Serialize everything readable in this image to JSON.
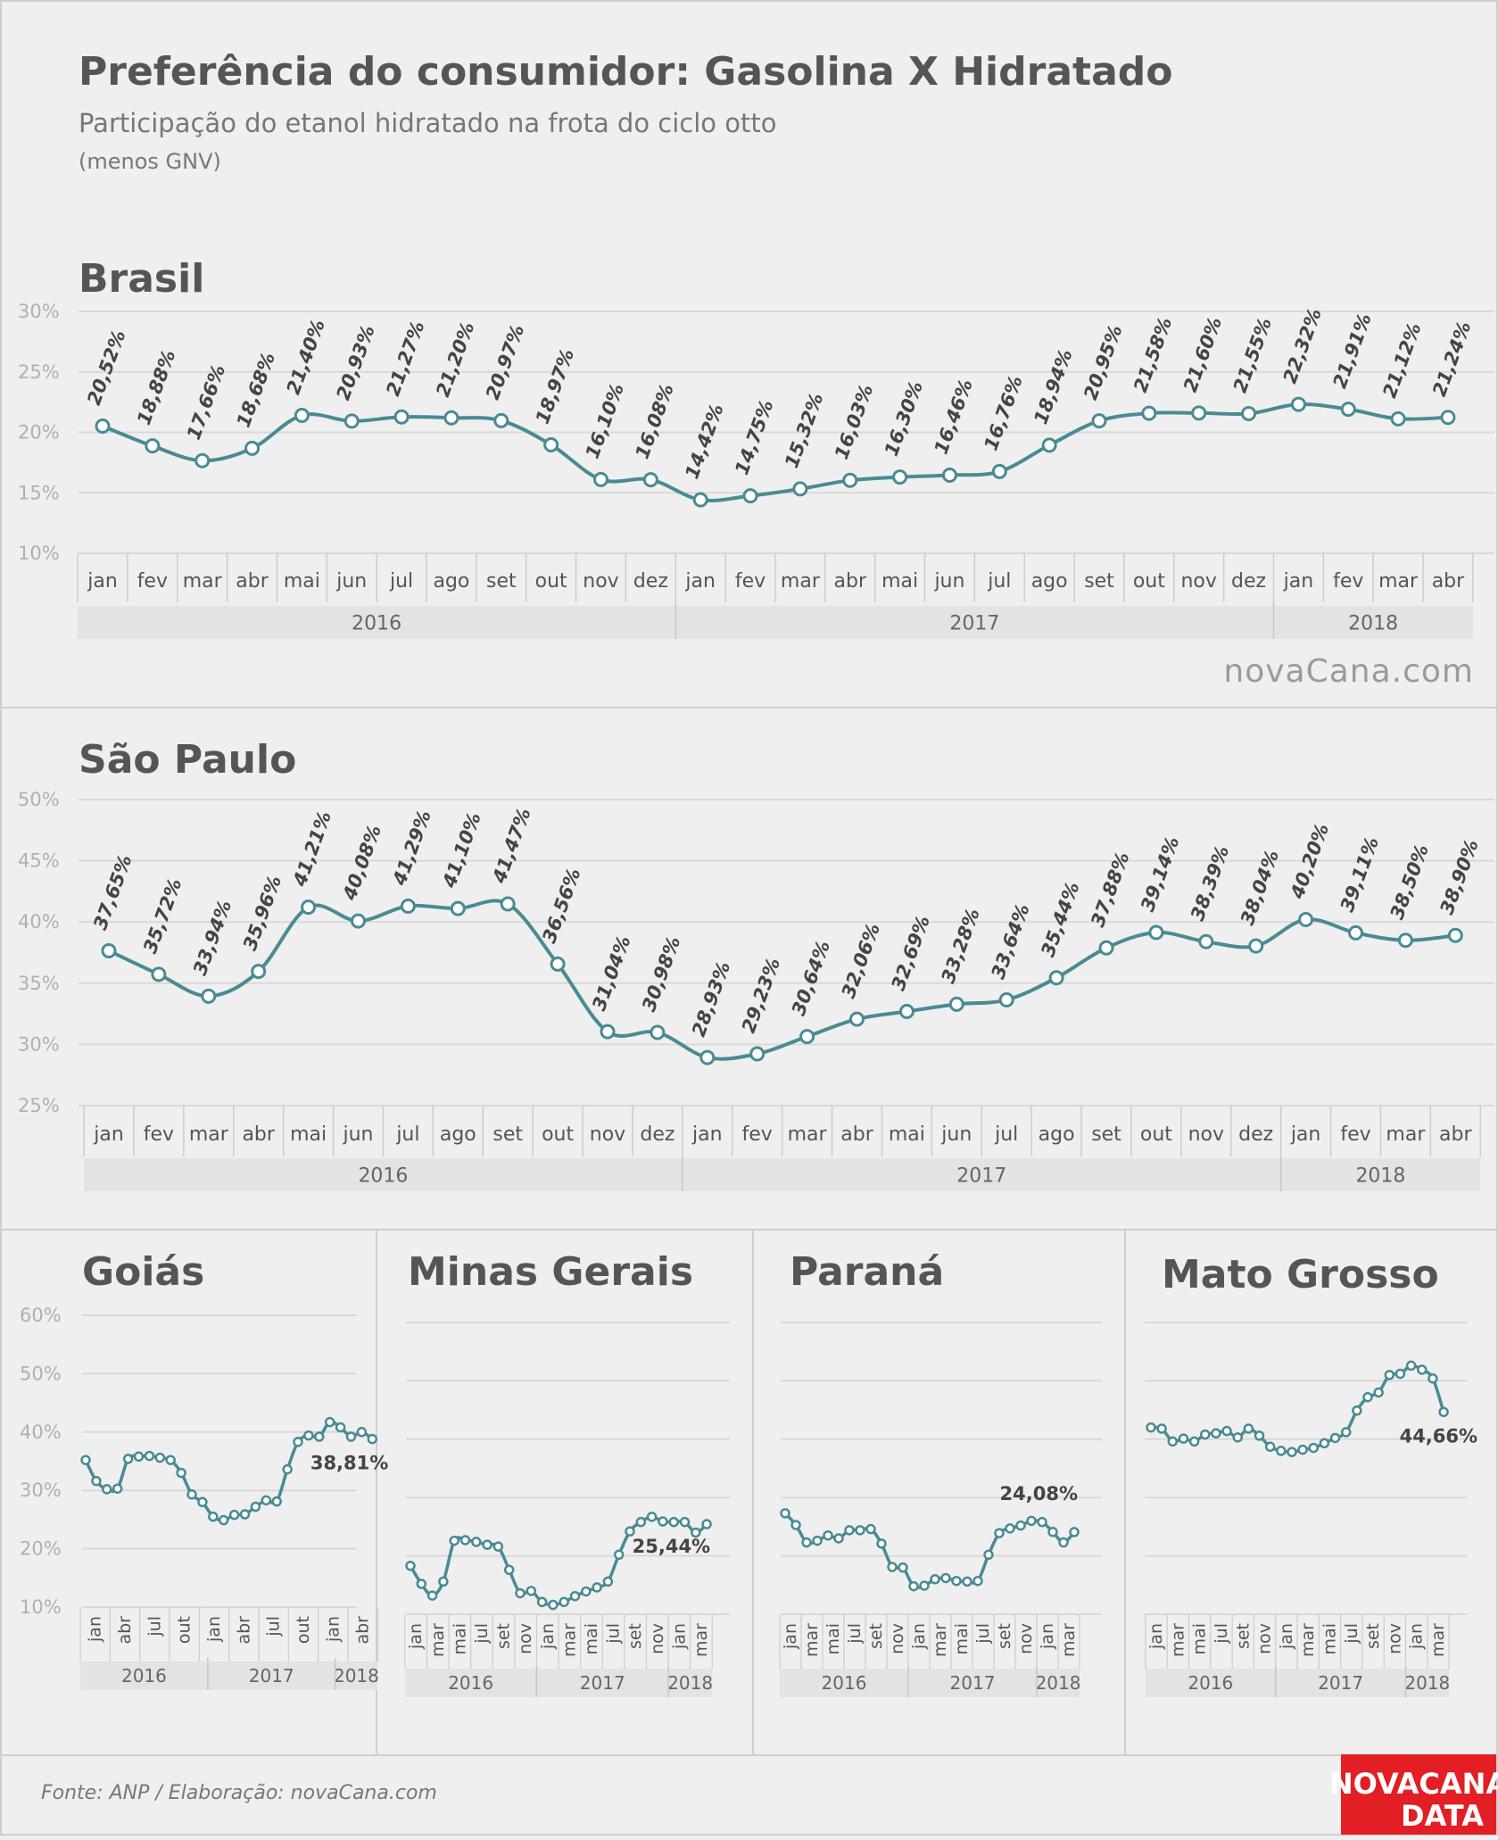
{
  "header": {
    "title": "Preferência do consumidor: Gasolina X Hidratado",
    "subtitle": "Participação do etanol hidratado na frota do ciclo otto",
    "note": "(menos GNV)"
  },
  "footer": {
    "source": "Fonte: ANP  / Elaboração: novaCana.com",
    "watermark": "novaCana.com",
    "logo_line1": "NOVACANA",
    "logo_line2": "DATA",
    "logo_color": "#e31e24"
  },
  "colors": {
    "line": "#4a8a93",
    "grid": "#d9d9d9",
    "band": "#e3e3e3"
  },
  "chart_data": [
    {
      "type": "line",
      "title": "Brasil",
      "x": [
        "jan",
        "fev",
        "mar",
        "abr",
        "mai",
        "jun",
        "jul",
        "ago",
        "set",
        "out",
        "nov",
        "dez",
        "jan",
        "fev",
        "mar",
        "abr",
        "mai",
        "jun",
        "jul",
        "ago",
        "set",
        "out",
        "nov",
        "dez",
        "jan",
        "fev",
        "mar",
        "abr"
      ],
      "year_groups": [
        {
          "label": "2016",
          "count": 12
        },
        {
          "label": "2017",
          "count": 12
        },
        {
          "label": "2018",
          "count": 4
        }
      ],
      "values": [
        20.52,
        18.88,
        17.66,
        18.68,
        21.4,
        20.93,
        21.27,
        21.2,
        20.97,
        18.97,
        16.1,
        16.08,
        14.42,
        14.75,
        15.32,
        16.03,
        16.3,
        16.46,
        16.76,
        18.94,
        20.95,
        21.58,
        21.6,
        21.55,
        22.32,
        21.91,
        21.12,
        21.24
      ],
      "labels": [
        "20,52%",
        "18,88%",
        "17,66%",
        "18,68%",
        "21,40%",
        "20,93%",
        "21,27%",
        "21,20%",
        "20,97%",
        "18,97%",
        "16,10%",
        "16,08%",
        "14,42%",
        "14,75%",
        "15,32%",
        "16,03%",
        "16,30%",
        "16,46%",
        "16,76%",
        "18,94%",
        "20,95%",
        "21,58%",
        "21,60%",
        "21,55%",
        "22,32%",
        "21,91%",
        "21,12%",
        "21,24%"
      ],
      "ylim": [
        10,
        30
      ],
      "yticks": [
        "10%",
        "15%",
        "20%",
        "25%",
        "30%"
      ],
      "grid": true
    },
    {
      "type": "line",
      "title": "São Paulo",
      "x": [
        "jan",
        "fev",
        "mar",
        "abr",
        "mai",
        "jun",
        "jul",
        "ago",
        "set",
        "out",
        "nov",
        "dez",
        "jan",
        "fev",
        "mar",
        "abr",
        "mai",
        "jun",
        "jul",
        "ago",
        "set",
        "out",
        "nov",
        "dez",
        "jan",
        "fev",
        "mar",
        "abr"
      ],
      "year_groups": [
        {
          "label": "2016",
          "count": 12
        },
        {
          "label": "2017",
          "count": 12
        },
        {
          "label": "2018",
          "count": 4
        }
      ],
      "values": [
        37.65,
        35.72,
        33.94,
        35.96,
        41.21,
        40.08,
        41.29,
        41.1,
        41.47,
        36.56,
        31.04,
        30.98,
        28.93,
        29.23,
        30.64,
        32.06,
        32.69,
        33.28,
        33.64,
        35.44,
        37.88,
        39.14,
        38.39,
        38.04,
        40.2,
        39.11,
        38.5,
        38.9
      ],
      "labels": [
        "37,65%",
        "35,72%",
        "33,94%",
        "35,96%",
        "41,21%",
        "40,08%",
        "41,29%",
        "41,10%",
        "41,47%",
        "36,56%",
        "31,04%",
        "30,98%",
        "28,93%",
        "29,23%",
        "30,64%",
        "32,06%",
        "32,69%",
        "33,28%",
        "33,64%",
        "35,44%",
        "37,88%",
        "39,14%",
        "38,39%",
        "38,04%",
        "40,20%",
        "39,11%",
        "38,50%",
        "38,90%"
      ],
      "ylim": [
        25,
        50
      ],
      "yticks": [
        "25%",
        "30%",
        "35%",
        "40%",
        "45%",
        "50%"
      ],
      "grid": true
    },
    {
      "type": "line",
      "title": "Goiás",
      "ylim": [
        10,
        60
      ],
      "yticks": [
        "10%",
        "20%",
        "30%",
        "40%",
        "50%",
        "60%"
      ],
      "values": [
        35.2,
        31.6,
        30.2,
        30.3,
        35.4,
        35.8,
        35.9,
        35.6,
        35.2,
        33.0,
        29.3,
        28.0,
        25.5,
        24.9,
        25.8,
        25.9,
        27.2,
        28.3,
        28.1,
        33.6,
        38.3,
        39.4,
        39.2,
        41.7,
        40.8,
        39.2,
        40.0,
        38.81
      ],
      "last_label": "38,81%",
      "tick_labels": [
        "jan",
        "abr",
        "jul",
        "out",
        "jan",
        "abr",
        "jul",
        "out",
        "jan",
        "abr"
      ],
      "year_groups": [
        {
          "label": "2016",
          "count": 12
        },
        {
          "label": "2017",
          "count": 12
        },
        {
          "label": "2018",
          "count": 4
        }
      ],
      "grid": true
    },
    {
      "type": "line",
      "title": "Minas Gerais",
      "ylim": [
        10,
        60
      ],
      "values": [
        18.3,
        15.2,
        13.2,
        15.6,
        22.6,
        22.7,
        22.4,
        21.9,
        21.6,
        17.6,
        13.6,
        14.0,
        12.1,
        11.6,
        12.1,
        13.1,
        13.9,
        14.6,
        15.6,
        20.2,
        24.2,
        25.8,
        26.7,
        25.9,
        25.8,
        25.8,
        24.0,
        25.44
      ],
      "last_label": "25,44%",
      "tick_labels": [
        "jan",
        "mar",
        "mai",
        "jul",
        "set",
        "nov",
        "jan",
        "mar",
        "mai",
        "jul",
        "set",
        "nov",
        "jan",
        "mar"
      ],
      "year_groups": [
        {
          "label": "2016",
          "count": 12
        },
        {
          "label": "2017",
          "count": 12
        },
        {
          "label": "2018",
          "count": 4
        }
      ],
      "grid": true
    },
    {
      "type": "line",
      "title": "Paraná",
      "ylim": [
        10,
        60
      ],
      "values": [
        27.3,
        25.3,
        22.3,
        22.6,
        23.5,
        23.0,
        24.4,
        24.4,
        24.6,
        22.1,
        18.1,
        18.0,
        14.8,
        14.9,
        16.0,
        16.2,
        15.7,
        15.6,
        15.7,
        20.2,
        23.9,
        24.7,
        25.2,
        26.0,
        25.8,
        24.1,
        22.3,
        24.08
      ],
      "last_label": "24,08%",
      "tick_labels": [
        "jan",
        "mar",
        "mai",
        "jul",
        "set",
        "nov",
        "jan",
        "mar",
        "mai",
        "jul",
        "set",
        "nov",
        "jan",
        "mar"
      ],
      "year_groups": [
        {
          "label": "2016",
          "count": 12
        },
        {
          "label": "2017",
          "count": 12
        },
        {
          "label": "2018",
          "count": 4
        }
      ],
      "grid": true
    },
    {
      "type": "line",
      "title": "Mato Grosso",
      "ylim": [
        10,
        60
      ],
      "values": [
        42.0,
        41.8,
        39.6,
        40.1,
        39.6,
        40.8,
        41.0,
        41.4,
        40.3,
        41.8,
        40.6,
        38.7,
        38.0,
        37.8,
        38.2,
        38.5,
        39.3,
        40.2,
        41.2,
        44.9,
        47.2,
        48.0,
        51.0,
        51.2,
        52.6,
        51.9,
        50.4,
        44.66
      ],
      "last_label": "44,66%",
      "tick_labels": [
        "jan",
        "mar",
        "mai",
        "jul",
        "set",
        "nov",
        "jan",
        "mar",
        "mai",
        "jul",
        "set",
        "nov",
        "jan",
        "mar"
      ],
      "year_groups": [
        {
          "label": "2016",
          "count": 12
        },
        {
          "label": "2017",
          "count": 12
        },
        {
          "label": "2018",
          "count": 4
        }
      ],
      "grid": true
    }
  ]
}
